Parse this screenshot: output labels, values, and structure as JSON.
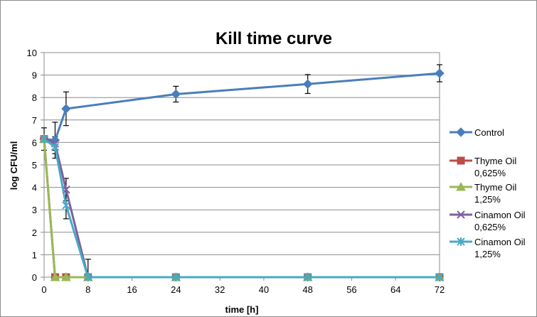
{
  "chart_data": {
    "type": "line",
    "title": "Kill time curve",
    "xlabel": "time [h]",
    "ylabel": "log CFU/ml",
    "xlim": [
      0,
      72
    ],
    "ylim": [
      0,
      10
    ],
    "xticks": [
      0,
      8,
      16,
      24,
      32,
      40,
      48,
      56,
      64,
      72
    ],
    "yticks": [
      0,
      1,
      2,
      3,
      4,
      5,
      6,
      7,
      8,
      9,
      10
    ],
    "grid": "horizontal",
    "legend_position": "right",
    "series": [
      {
        "name": "Control",
        "color": "#4a7ebb",
        "marker": "diamond",
        "points": [
          {
            "x": 0,
            "y": 6.15,
            "err": 0.5
          },
          {
            "x": 2,
            "y": 6.1,
            "err": 0.8
          },
          {
            "x": 4,
            "y": 7.5,
            "err": 0.75
          },
          {
            "x": 24,
            "y": 8.15,
            "err": 0.35
          },
          {
            "x": 48,
            "y": 8.6,
            "err": 0.42
          },
          {
            "x": 72,
            "y": 9.08,
            "err": 0.38
          }
        ]
      },
      {
        "name": "Thyme Oil 0,625%",
        "label_lines": [
          "Thyme Oil",
          "0,625%"
        ],
        "color": "#be4b48",
        "marker": "square",
        "points": [
          {
            "x": 0,
            "y": 6.15,
            "err": 0
          },
          {
            "x": 2,
            "y": 0,
            "err": 0
          },
          {
            "x": 4,
            "y": 0,
            "err": 0
          },
          {
            "x": 8,
            "y": 0,
            "err": 0
          },
          {
            "x": 24,
            "y": 0,
            "err": 0
          },
          {
            "x": 48,
            "y": 0,
            "err": 0
          },
          {
            "x": 72,
            "y": 0,
            "err": 0
          }
        ]
      },
      {
        "name": "Thyme Oil 1,25%",
        "label_lines": [
          "Thyme Oil",
          "1,25%"
        ],
        "color": "#98b954",
        "marker": "triangle",
        "points": [
          {
            "x": 0,
            "y": 6.15,
            "err": 0
          },
          {
            "x": 2,
            "y": 0,
            "err": 0
          },
          {
            "x": 4,
            "y": 0,
            "err": 0
          },
          {
            "x": 8,
            "y": 0,
            "err": 0
          },
          {
            "x": 24,
            "y": 0,
            "err": 0
          },
          {
            "x": 48,
            "y": 0,
            "err": 0
          },
          {
            "x": 72,
            "y": 0,
            "err": 0
          }
        ]
      },
      {
        "name": "Cinamon Oil 0,625%",
        "label_lines": [
          "Cinamon Oil",
          "0,625%"
        ],
        "color": "#7d60a0",
        "marker": "x",
        "points": [
          {
            "x": 0,
            "y": 6.15,
            "err": 0
          },
          {
            "x": 2,
            "y": 5.95,
            "err": 0.3
          },
          {
            "x": 4,
            "y": 3.9,
            "err": 0.5
          },
          {
            "x": 8,
            "y": 0,
            "err": 0.8
          },
          {
            "x": 24,
            "y": 0,
            "err": 0
          },
          {
            "x": 48,
            "y": 0,
            "err": 0
          },
          {
            "x": 72,
            "y": 0,
            "err": 0
          }
        ]
      },
      {
        "name": "Cinamon Oil 1,25%",
        "label_lines": [
          "Cinamon Oil",
          "1,25%"
        ],
        "color": "#46aac5",
        "marker": "asterisk",
        "points": [
          {
            "x": 0,
            "y": 6.15,
            "err": 0
          },
          {
            "x": 2,
            "y": 5.8,
            "err": 0.3
          },
          {
            "x": 4,
            "y": 3.2,
            "err": 0.6
          },
          {
            "x": 8,
            "y": 0,
            "err": 0
          },
          {
            "x": 24,
            "y": 0,
            "err": 0
          },
          {
            "x": 48,
            "y": 0,
            "err": 0
          },
          {
            "x": 72,
            "y": 0,
            "err": 0
          }
        ]
      }
    ]
  }
}
